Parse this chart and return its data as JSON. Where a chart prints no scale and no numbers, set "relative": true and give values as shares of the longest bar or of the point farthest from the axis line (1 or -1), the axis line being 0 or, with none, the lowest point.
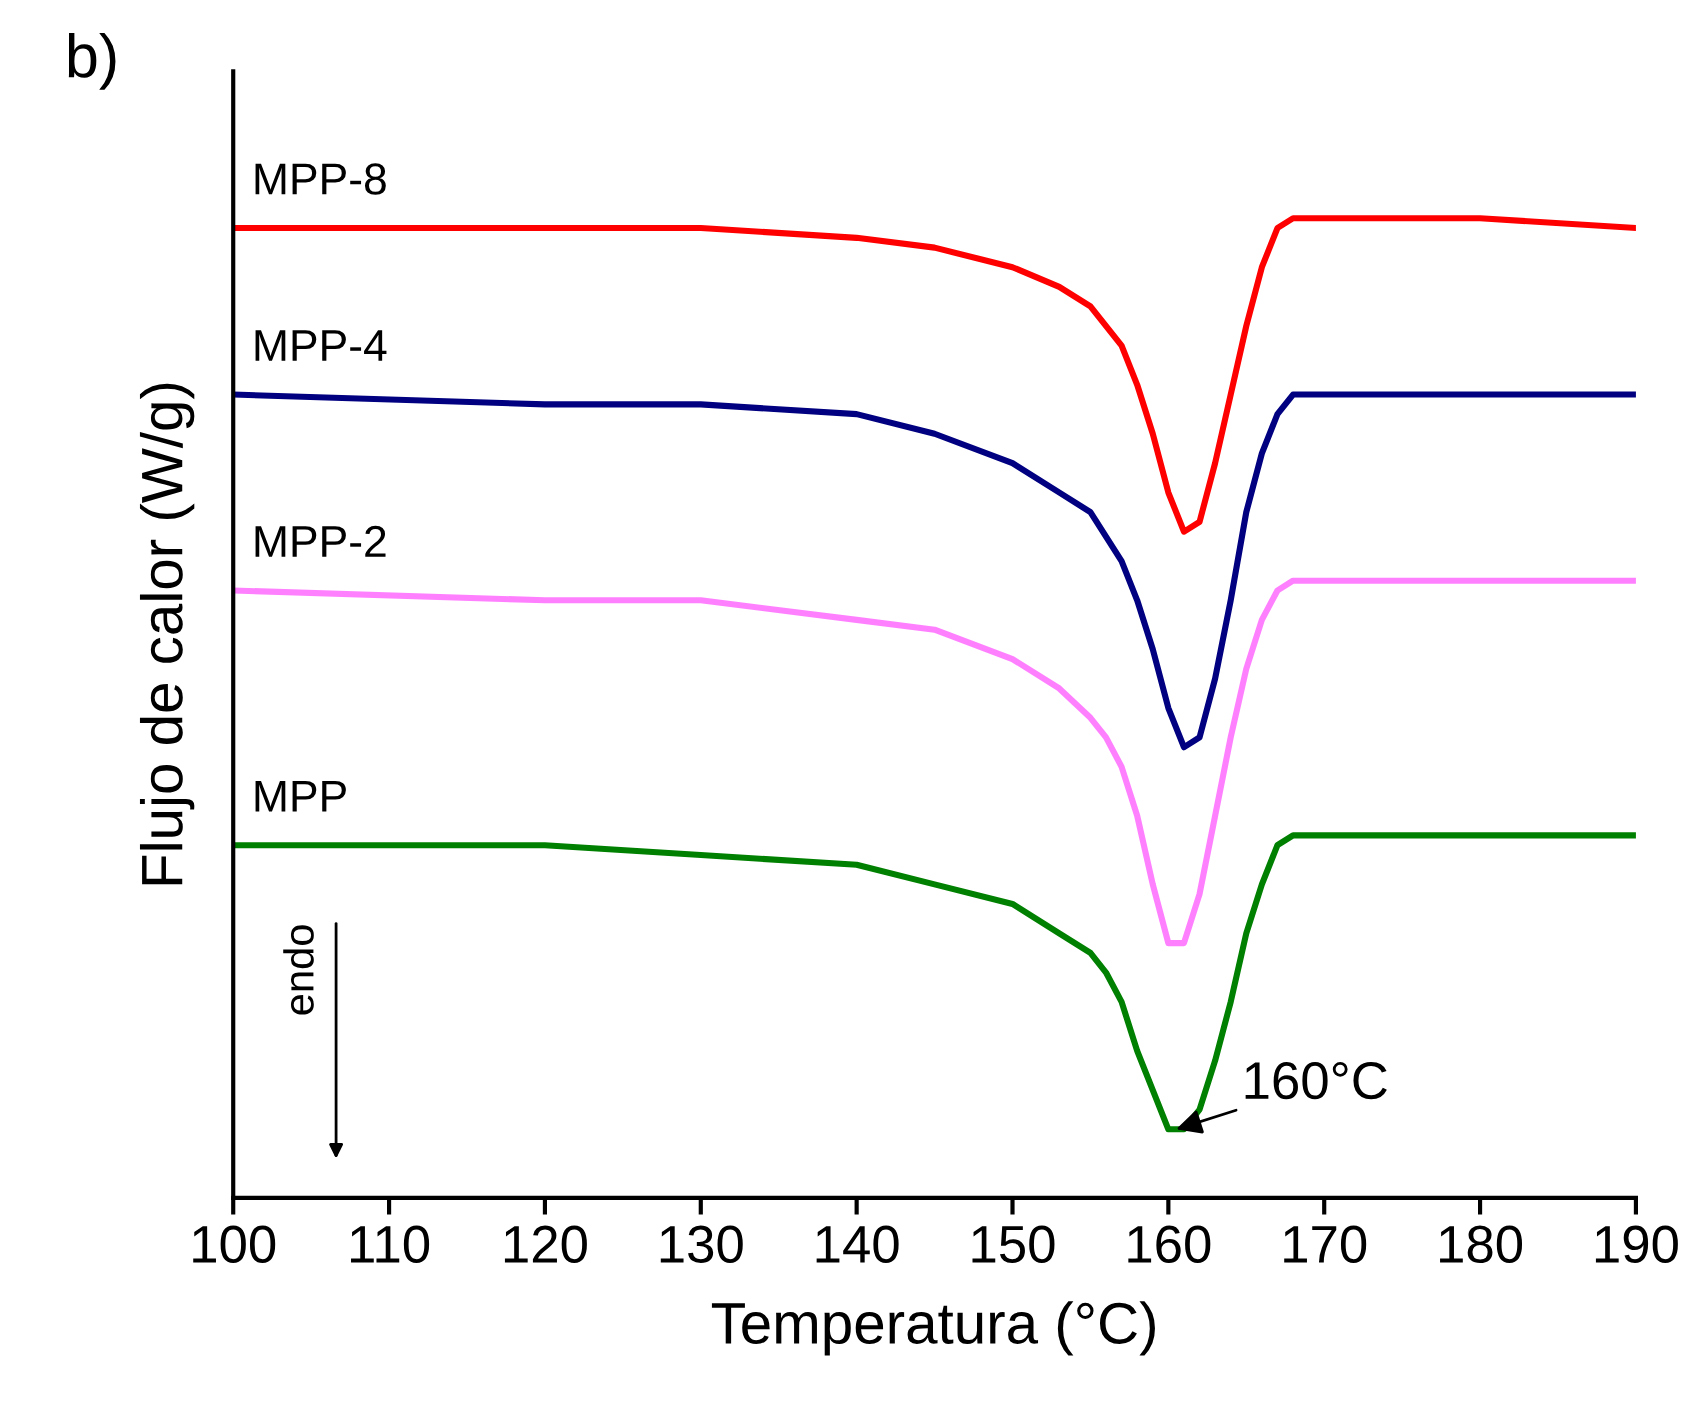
{
  "chart_data": {
    "type": "line",
    "title": "b)",
    "xlabel": "Temperatura (°C)",
    "ylabel": "Flujo de calor (W/g)",
    "relative": true,
    "xlim": [
      100,
      190
    ],
    "xticks": [
      100,
      110,
      120,
      130,
      140,
      150,
      160,
      170,
      180,
      190
    ],
    "grid": false,
    "legend": false,
    "marker": "none",
    "line_style": "solid",
    "series": [
      {
        "name": "MPP-8",
        "color": "#ff0000",
        "x": [
          100,
          110,
          120,
          130,
          140,
          145,
          150,
          153,
          155,
          157,
          158,
          159,
          160,
          161,
          162,
          163,
          164,
          165,
          166,
          167,
          168,
          170,
          180,
          190
        ],
        "values": [
          0.99,
          0.99,
          0.99,
          0.99,
          0.98,
          0.97,
          0.95,
          0.93,
          0.91,
          0.87,
          0.83,
          0.78,
          0.72,
          0.68,
          0.69,
          0.75,
          0.82,
          0.89,
          0.95,
          0.99,
          1.0,
          1.0,
          1.0,
          0.99
        ]
      },
      {
        "name": "MPP-4",
        "color": "#000080",
        "x": [
          100,
          120,
          130,
          140,
          145,
          150,
          153,
          155,
          157,
          158,
          159,
          160,
          161,
          162,
          163,
          164,
          165,
          166,
          167,
          168,
          170,
          180,
          190
        ],
        "values": [
          0.82,
          0.81,
          0.81,
          0.8,
          0.78,
          0.75,
          0.72,
          0.7,
          0.65,
          0.61,
          0.56,
          0.5,
          0.46,
          0.47,
          0.53,
          0.61,
          0.7,
          0.76,
          0.8,
          0.82,
          0.82,
          0.82,
          0.82
        ]
      },
      {
        "name": "MPP-2",
        "color": "#ff80ff",
        "x": [
          100,
          120,
          130,
          140,
          145,
          150,
          153,
          155,
          156,
          157,
          158,
          159,
          160,
          161,
          162,
          163,
          164,
          165,
          166,
          167,
          168,
          170,
          180,
          190
        ],
        "values": [
          0.62,
          0.61,
          0.61,
          0.59,
          0.58,
          0.55,
          0.52,
          0.49,
          0.47,
          0.44,
          0.39,
          0.32,
          0.26,
          0.26,
          0.31,
          0.39,
          0.47,
          0.54,
          0.59,
          0.62,
          0.63,
          0.63,
          0.63,
          0.63
        ]
      },
      {
        "name": "MPP",
        "color": "#008000",
        "x": [
          100,
          120,
          130,
          140,
          145,
          150,
          153,
          155,
          156,
          157,
          158,
          159,
          160,
          161,
          162,
          163,
          164,
          165,
          166,
          167,
          168,
          170,
          180,
          190
        ],
        "values": [
          0.36,
          0.36,
          0.35,
          0.34,
          0.32,
          0.3,
          0.27,
          0.25,
          0.23,
          0.2,
          0.15,
          0.11,
          0.07,
          0.07,
          0.09,
          0.14,
          0.2,
          0.27,
          0.32,
          0.36,
          0.37,
          0.37,
          0.37,
          0.37
        ]
      }
    ],
    "annotations": [
      {
        "text": "160°C",
        "x": 160.5,
        "y": 0.07
      },
      "endo"
    ]
  }
}
